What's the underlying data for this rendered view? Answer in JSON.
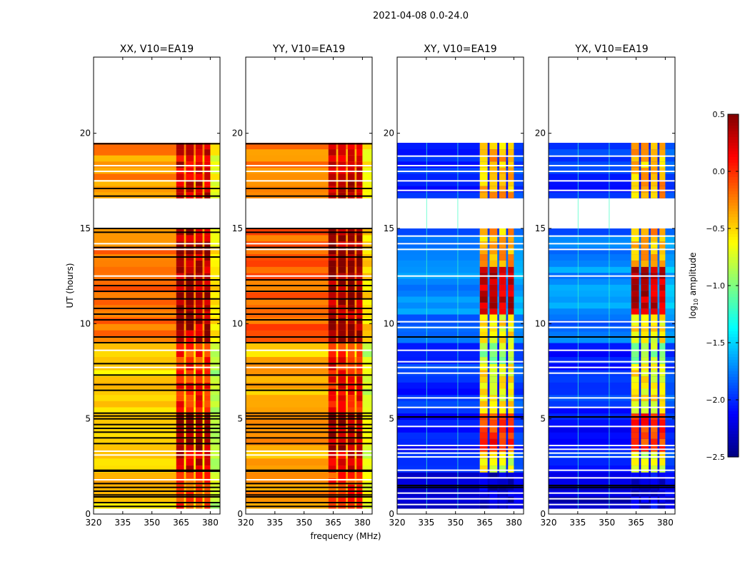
{
  "chart_data": {
    "type": "heatmap",
    "suptitle": "2021-04-08 0.0-24.0",
    "xlabel": "frequency (MHz)",
    "ylabel": "UT (hours)",
    "xlim": [
      320,
      385
    ],
    "ylim": [
      0,
      24
    ],
    "xticks": [
      "320",
      "335",
      "350",
      "365",
      "380"
    ],
    "xtick_values": [
      320,
      335,
      350,
      365,
      380
    ],
    "yticks": [
      "0",
      "5",
      "10",
      "15",
      "20"
    ],
    "ytick_values": [
      0,
      5,
      10,
      15,
      20
    ],
    "colorbar": {
      "label": "log10 amplitude",
      "label_main": "log",
      "label_sub": "10",
      "label_rest": " amplitude",
      "range": [
        -2.5,
        0.5
      ],
      "ticks": [
        "0.5",
        "0.0",
        "−0.5",
        "−1.0",
        "−1.5",
        "−2.0",
        "−2.5"
      ],
      "tick_values": [
        0.5,
        0.0,
        -0.5,
        -1.0,
        -1.5,
        -2.0,
        -2.5
      ],
      "colormap": "jet"
    },
    "rfi_subbands_mhz": [
      [
        362.5,
        366.5
      ],
      [
        367.5,
        371.5
      ],
      [
        372.5,
        376
      ],
      [
        377,
        380
      ]
    ],
    "panels": [
      {
        "title": "XX, V10=EA19",
        "flag_color": "#000000",
        "segments": [
          {
            "t": [
              0.3,
              2.2
            ],
            "base": -0.45,
            "band": -0.1
          },
          {
            "t": [
              2.2,
              3.3
            ],
            "base": -0.5,
            "band": 0.25
          },
          {
            "t": [
              3.3,
              5.3
            ],
            "base": -0.45,
            "band": 0.4
          },
          {
            "t": [
              5.3,
              7.9
            ],
            "base": -0.5,
            "band": 0.05
          },
          {
            "t": [
              7.9,
              9.0
            ],
            "base": -0.55,
            "band": 0.0
          },
          {
            "t": [
              9.0,
              15.0
            ],
            "base": -0.2,
            "band": 0.35
          },
          {
            "t": [
              16.6,
              19.5
            ],
            "base": -0.3,
            "band": 0.25
          }
        ],
        "flags": [
          0.4,
          0.6,
          0.9,
          1.0,
          1.2,
          1.4,
          1.6,
          2.25,
          2.3,
          3.7,
          4.0,
          4.3,
          4.5,
          4.7,
          5.0,
          5.15,
          5.3,
          6.5,
          6.8,
          7.3,
          7.9,
          9.0,
          9.3,
          10.2,
          10.5,
          10.8,
          11.3,
          11.7,
          12.0,
          12.3,
          13.5,
          14.0,
          14.8,
          15.0,
          16.7,
          17.1,
          19.45
        ],
        "gaps": [
          1.8,
          3.1,
          3.3,
          7.7,
          8.6,
          12.5,
          13.9,
          14.2,
          17.5,
          18.0,
          18.3
        ]
      },
      {
        "title": "YY, V10=EA19",
        "flag_color": "#000000",
        "segments": [
          {
            "t": [
              0.3,
              2.2
            ],
            "base": -0.35,
            "band": -0.05
          },
          {
            "t": [
              2.2,
              3.3
            ],
            "base": -0.4,
            "band": 0.2
          },
          {
            "t": [
              3.3,
              5.3
            ],
            "base": -0.35,
            "band": 0.4
          },
          {
            "t": [
              5.3,
              7.9
            ],
            "base": -0.4,
            "band": 0.1
          },
          {
            "t": [
              7.9,
              9.0
            ],
            "base": -0.45,
            "band": 0.05
          },
          {
            "t": [
              9.0,
              15.0
            ],
            "base": -0.15,
            "band": 0.4
          },
          {
            "t": [
              16.6,
              19.5
            ],
            "base": -0.25,
            "band": 0.3
          }
        ],
        "flags": [
          0.4,
          0.6,
          0.9,
          1.0,
          1.2,
          1.4,
          1.6,
          2.25,
          2.3,
          3.7,
          4.0,
          4.3,
          4.5,
          4.7,
          5.0,
          5.15,
          5.3,
          6.5,
          6.8,
          7.3,
          7.9,
          9.0,
          9.3,
          10.2,
          10.5,
          10.8,
          11.3,
          11.7,
          12.0,
          12.3,
          13.5,
          14.0,
          14.8,
          15.0,
          16.7,
          17.1,
          19.45
        ],
        "gaps": [
          1.8,
          3.1,
          3.3,
          7.7,
          8.6,
          12.5,
          13.9,
          14.2,
          17.5,
          18.0,
          18.3
        ]
      },
      {
        "title": "XY, V10=EA19",
        "flag_color": "#ffffff",
        "segments": [
          {
            "t": [
              0.3,
              2.2
            ],
            "base": -2.3,
            "band": -2.3
          },
          {
            "t": [
              2.2,
              3.3
            ],
            "base": -2.0,
            "band": -0.7
          },
          {
            "t": [
              3.3,
              5.3
            ],
            "base": -2.1,
            "band": 0.0
          },
          {
            "t": [
              5.3,
              7.9
            ],
            "base": -2.0,
            "band": -0.6
          },
          {
            "t": [
              7.9,
              9.0
            ],
            "base": -2.1,
            "band": -0.9
          },
          {
            "t": [
              9.0,
              10.5
            ],
            "base": -1.8,
            "band": -0.6
          },
          {
            "t": [
              10.5,
              13.0
            ],
            "base": -1.7,
            "band": 0.3
          },
          {
            "t": [
              13.0,
              15.0
            ],
            "base": -1.8,
            "band": -0.4
          },
          {
            "t": [
              16.6,
              19.5
            ],
            "base": -2.0,
            "band": -0.4
          }
        ],
        "flags": [
          0.5,
          0.8,
          1.1,
          1.9,
          2.3,
          3.0,
          3.2,
          3.4,
          3.6,
          4.6,
          5.6,
          6.1,
          7.4,
          7.7,
          8.0,
          8.6,
          9.8,
          10.1,
          12.5,
          13.9,
          14.2,
          14.6,
          17.0,
          17.5,
          18.0,
          18.3,
          18.8
        ],
        "gaps": [
          5.1,
          9.3,
          1.4,
          1.5
        ]
      },
      {
        "title": "YX, V10=EA19",
        "flag_color": "#ffffff",
        "segments": [
          {
            "t": [
              0.3,
              2.2
            ],
            "base": -2.3,
            "band": -2.2
          },
          {
            "t": [
              2.2,
              3.3
            ],
            "base": -2.0,
            "band": -0.7
          },
          {
            "t": [
              3.3,
              5.3
            ],
            "base": -2.1,
            "band": 0.0
          },
          {
            "t": [
              5.3,
              7.9
            ],
            "base": -2.0,
            "band": -0.6
          },
          {
            "t": [
              7.9,
              9.0
            ],
            "base": -2.1,
            "band": -0.9
          },
          {
            "t": [
              9.0,
              10.5
            ],
            "base": -1.8,
            "band": -0.6
          },
          {
            "t": [
              10.5,
              13.0
            ],
            "base": -1.7,
            "band": 0.3
          },
          {
            "t": [
              13.0,
              15.0
            ],
            "base": -1.8,
            "band": -0.4
          },
          {
            "t": [
              16.6,
              19.5
            ],
            "base": -2.0,
            "band": -0.4
          }
        ],
        "flags": [
          0.5,
          0.8,
          1.1,
          1.9,
          2.3,
          3.0,
          3.2,
          3.4,
          3.6,
          4.6,
          5.6,
          6.1,
          7.4,
          7.7,
          8.0,
          8.6,
          9.8,
          10.1,
          12.5,
          13.9,
          14.2,
          14.6,
          17.0,
          17.5,
          18.0,
          18.3,
          18.8
        ],
        "gaps": [
          5.1,
          9.3,
          1.4,
          1.5
        ]
      }
    ]
  }
}
